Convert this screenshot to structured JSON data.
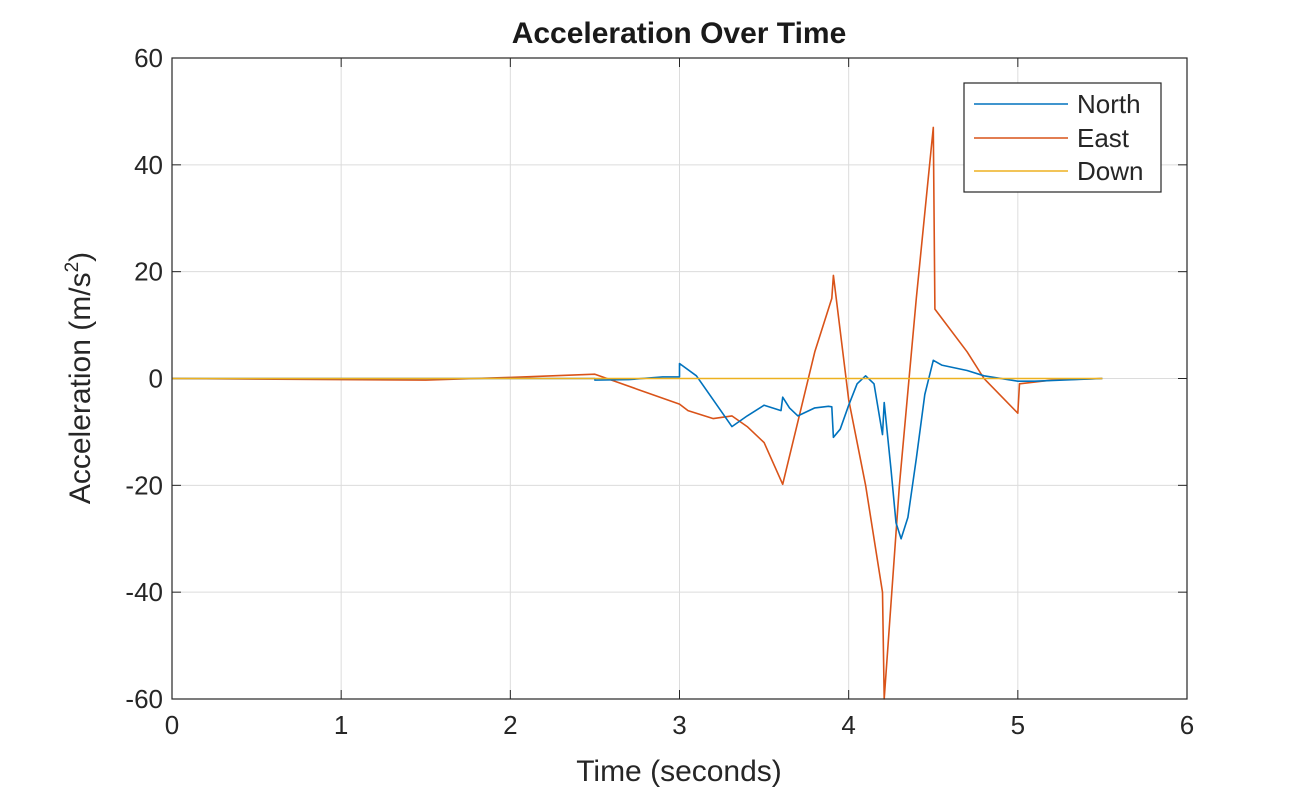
{
  "chart_data": {
    "type": "line",
    "title": "Acceleration Over Time",
    "xlabel": "Time (seconds)",
    "ylabel": "Acceleration  (m/s",
    "ylabel_superscript": "2",
    "ylabel_suffix": ")",
    "xlim": [
      0,
      6
    ],
    "ylim": [
      -60,
      60
    ],
    "xticks": [
      0,
      1,
      2,
      3,
      4,
      5,
      6
    ],
    "yticks": [
      -60,
      -40,
      -20,
      0,
      20,
      40,
      60
    ],
    "grid": true,
    "legend_position": "top-right",
    "series": [
      {
        "name": "North",
        "color": "#0072BD",
        "points": [
          [
            0,
            0
          ],
          [
            2.5,
            0
          ],
          [
            2.5,
            -0.3
          ],
          [
            2.7,
            -0.2
          ],
          [
            2.9,
            0.3
          ],
          [
            3.0,
            0.3
          ],
          [
            3.0,
            2.8
          ],
          [
            3.1,
            0.5
          ],
          [
            3.2,
            -4
          ],
          [
            3.31,
            -9
          ],
          [
            3.4,
            -7
          ],
          [
            3.5,
            -5
          ],
          [
            3.6,
            -6
          ],
          [
            3.61,
            -3.5
          ],
          [
            3.65,
            -5.5
          ],
          [
            3.7,
            -7
          ],
          [
            3.8,
            -5.5
          ],
          [
            3.88,
            -5.2
          ],
          [
            3.9,
            -5.3
          ],
          [
            3.91,
            -11
          ],
          [
            3.95,
            -9.5
          ],
          [
            4.0,
            -5
          ],
          [
            4.05,
            -1
          ],
          [
            4.1,
            0.5
          ],
          [
            4.15,
            -1
          ],
          [
            4.2,
            -10.5
          ],
          [
            4.21,
            -4.5
          ],
          [
            4.25,
            -17
          ],
          [
            4.28,
            -27
          ],
          [
            4.31,
            -30
          ],
          [
            4.35,
            -26
          ],
          [
            4.4,
            -15
          ],
          [
            4.45,
            -3
          ],
          [
            4.5,
            3.4
          ],
          [
            4.55,
            2.5
          ],
          [
            4.7,
            1.5
          ],
          [
            4.8,
            0.5
          ],
          [
            5.0,
            -0.5
          ],
          [
            5.1,
            -0.5
          ],
          [
            5.5,
            0
          ]
        ]
      },
      {
        "name": "East",
        "color": "#D95319",
        "points": [
          [
            0,
            0
          ],
          [
            1.5,
            -0.3
          ],
          [
            2.0,
            0.2
          ],
          [
            2.5,
            0.8
          ],
          [
            2.75,
            -2
          ],
          [
            3.0,
            -4.8
          ],
          [
            3.05,
            -6
          ],
          [
            3.2,
            -7.5
          ],
          [
            3.31,
            -7
          ],
          [
            3.4,
            -9
          ],
          [
            3.5,
            -12
          ],
          [
            3.61,
            -19.8
          ],
          [
            3.8,
            5
          ],
          [
            3.9,
            15
          ],
          [
            3.91,
            19.3
          ],
          [
            4.0,
            -4
          ],
          [
            4.1,
            -20
          ],
          [
            4.2,
            -40
          ],
          [
            4.21,
            -60
          ],
          [
            4.3,
            -20
          ],
          [
            4.4,
            15
          ],
          [
            4.5,
            47
          ],
          [
            4.51,
            13
          ],
          [
            4.7,
            5
          ],
          [
            4.8,
            0
          ],
          [
            5.0,
            -6.5
          ],
          [
            5.01,
            -1
          ],
          [
            5.2,
            -0.3
          ],
          [
            5.5,
            0
          ]
        ]
      },
      {
        "name": "Down",
        "color": "#EDB120",
        "points": [
          [
            0,
            0
          ],
          [
            5.5,
            0
          ]
        ]
      }
    ]
  }
}
